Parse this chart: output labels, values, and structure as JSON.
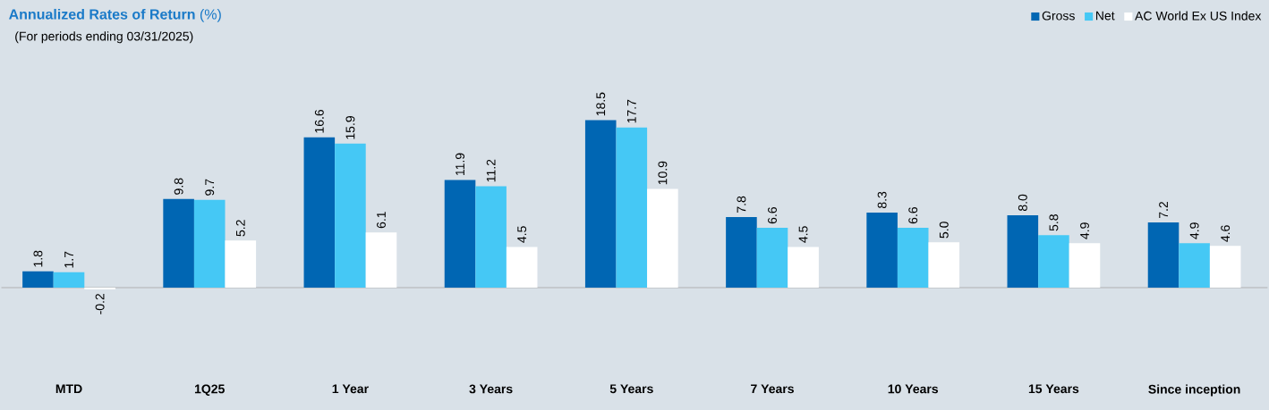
{
  "chart_data": {
    "type": "bar",
    "title": "**Annualized Rates of Return** (%)",
    "subtitle": "(For periods ending 03/31/2025)",
    "categories": [
      "MTD",
      "1Q25",
      "1 Year",
      "3 Years",
      "5 Years",
      "7 Years",
      "10 Years",
      "15 Years",
      "Since inception"
    ],
    "series": [
      {
        "name": "Gross",
        "color": "#0066b3",
        "values": [
          1.8,
          9.8,
          16.6,
          11.9,
          18.5,
          7.8,
          8.3,
          8.0,
          7.2
        ],
        "value_labels": [
          "1.8",
          "9.8",
          "16.6",
          "11.9",
          "18.5",
          "7.8",
          "8.3",
          "8.0",
          "7.2"
        ]
      },
      {
        "name": "Net",
        "color": "#45c8f5",
        "values": [
          1.7,
          9.7,
          15.9,
          11.2,
          17.7,
          6.6,
          6.6,
          5.8,
          4.9
        ],
        "value_labels": [
          "1.7",
          "9.7",
          "15.9",
          "11.2",
          "17.7",
          "6.6",
          "6.6",
          "5.8",
          "4.9"
        ]
      },
      {
        "name": "AC World Ex US Index",
        "color": "#ffffff",
        "values": [
          -0.2,
          5.2,
          6.1,
          4.5,
          10.9,
          4.5,
          5.0,
          4.9,
          4.6
        ],
        "value_labels": [
          "-0.2",
          "5.2",
          "6.1",
          "4.5",
          "10.9",
          "4.5",
          "5.0",
          "4.9",
          "4.6"
        ]
      }
    ],
    "legend": "top right"
  }
}
